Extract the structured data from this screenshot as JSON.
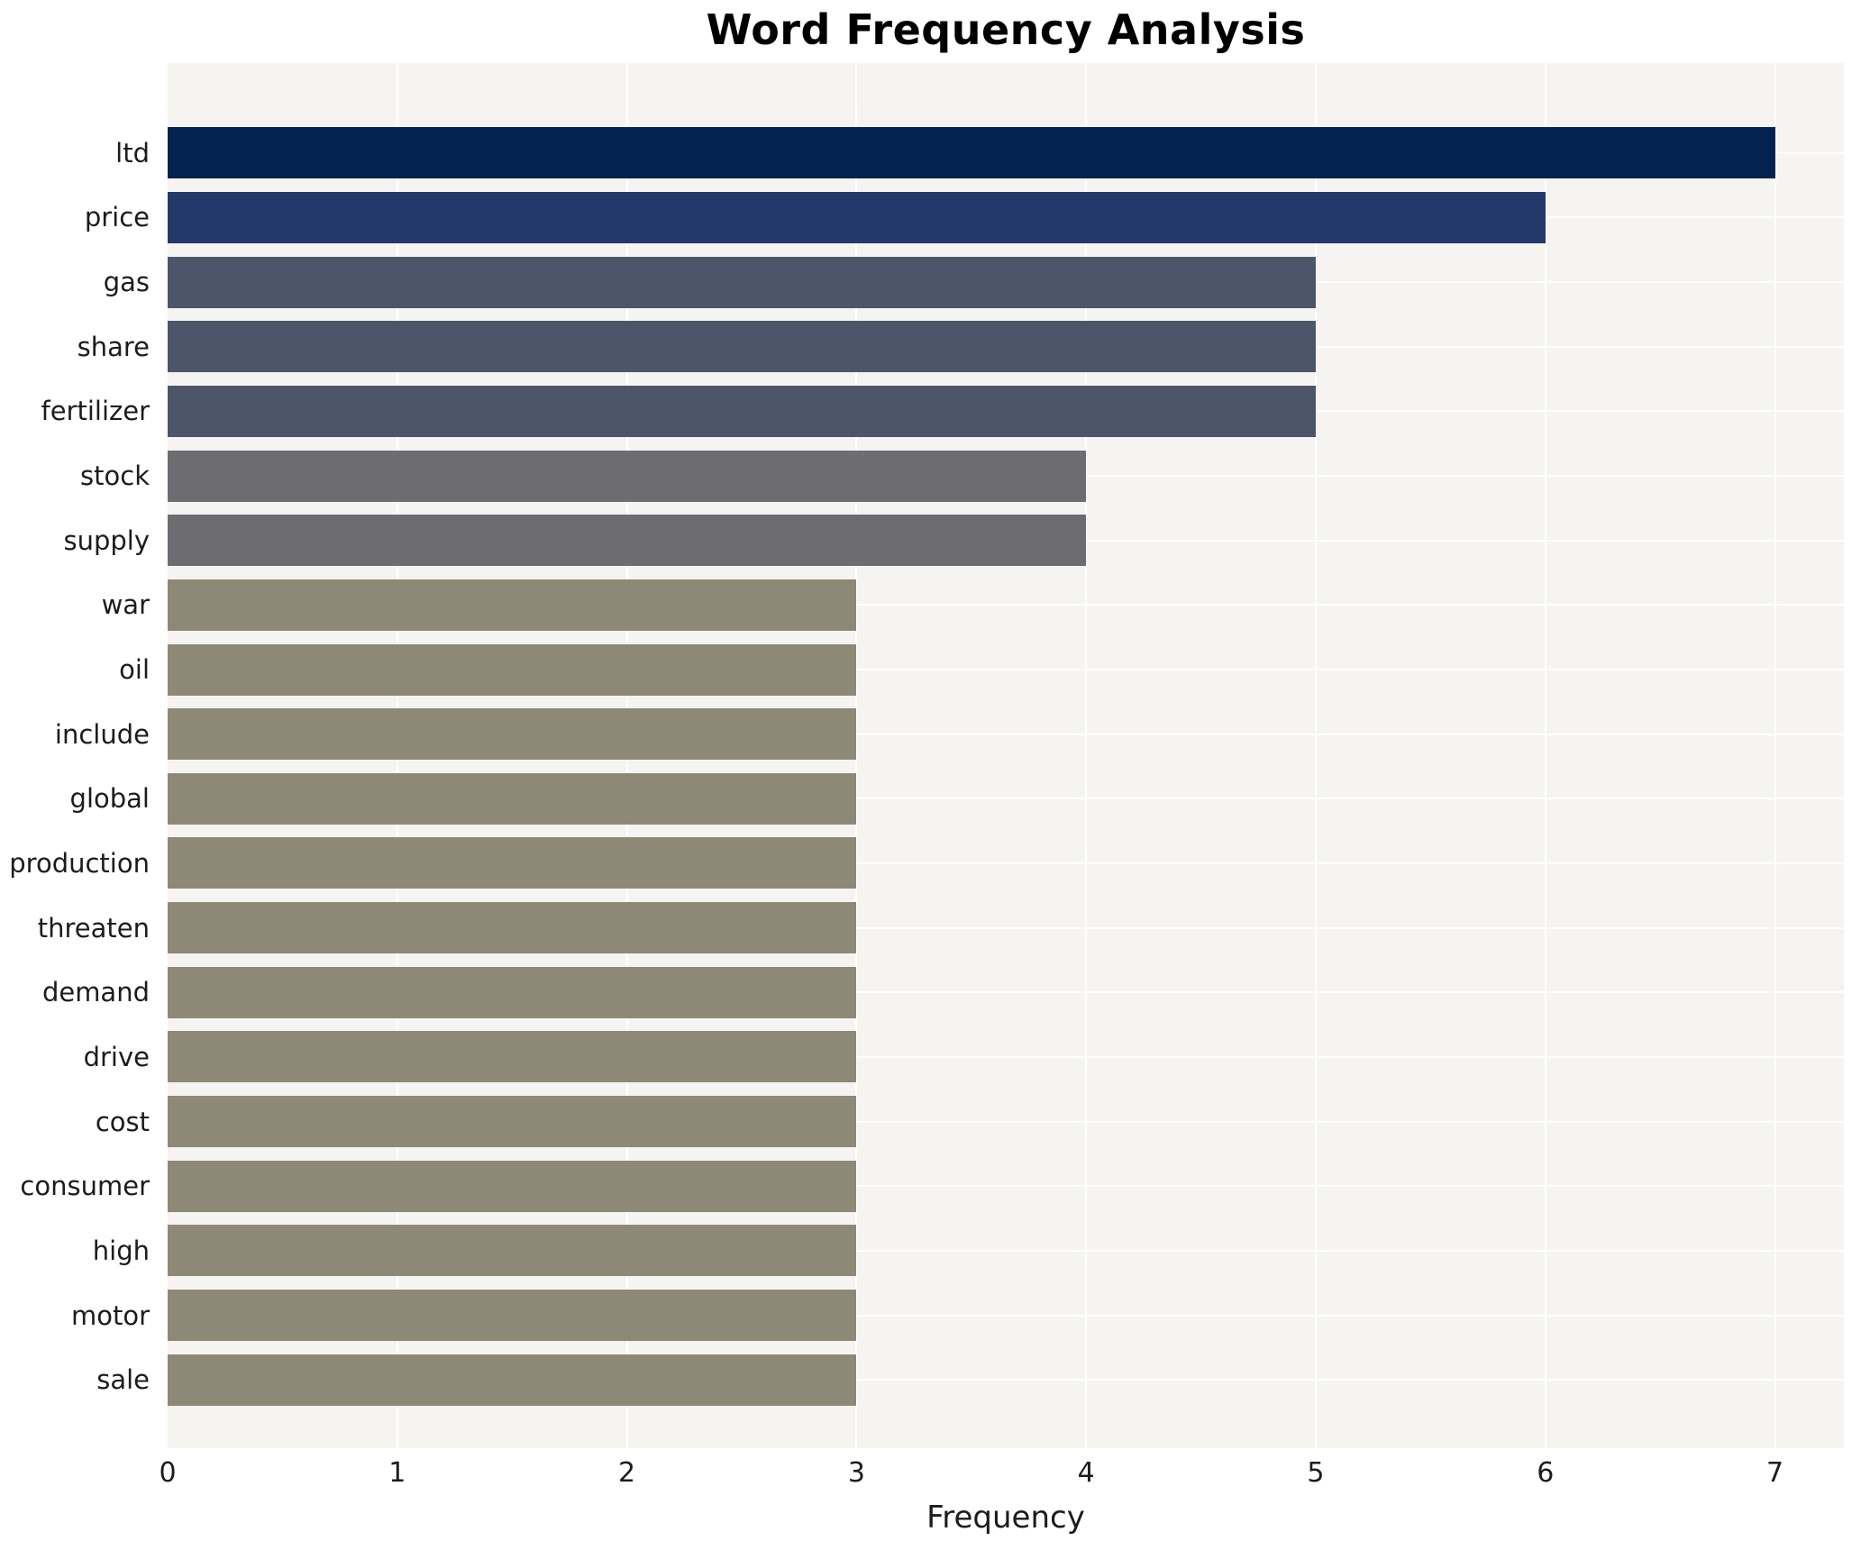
{
  "title": "Word Frequency Analysis",
  "chart_data": {
    "type": "bar",
    "orientation": "horizontal",
    "title": "Word Frequency Analysis",
    "xlabel": "Frequency",
    "ylabel": "",
    "categories": [
      "ltd",
      "price",
      "gas",
      "share",
      "fertilizer",
      "stock",
      "supply",
      "war",
      "oil",
      "include",
      "global",
      "production",
      "threaten",
      "demand",
      "drive",
      "cost",
      "consumer",
      "high",
      "motor",
      "sale"
    ],
    "values": [
      7,
      6,
      5,
      5,
      5,
      4,
      4,
      3,
      3,
      3,
      3,
      3,
      3,
      3,
      3,
      3,
      3,
      3,
      3,
      3
    ],
    "bar_colors": [
      "#03234e",
      "#23396b",
      "#4c5569",
      "#4c5569",
      "#4c5569",
      "#6c6c71",
      "#6c6c71",
      "#8e8977",
      "#8e8977",
      "#8e8977",
      "#8e8977",
      "#8e8977",
      "#8e8977",
      "#8e8977",
      "#8e8977",
      "#8e8977",
      "#8e8977",
      "#8e8977",
      "#8e8977",
      "#8e8977"
    ],
    "xticks": [
      0,
      1,
      2,
      3,
      4,
      5,
      6,
      7
    ],
    "xlim": [
      0,
      7.3
    ],
    "grid": true,
    "legend": false,
    "plot_background": "#f5f4f1",
    "grid_color": "#ffffff"
  }
}
